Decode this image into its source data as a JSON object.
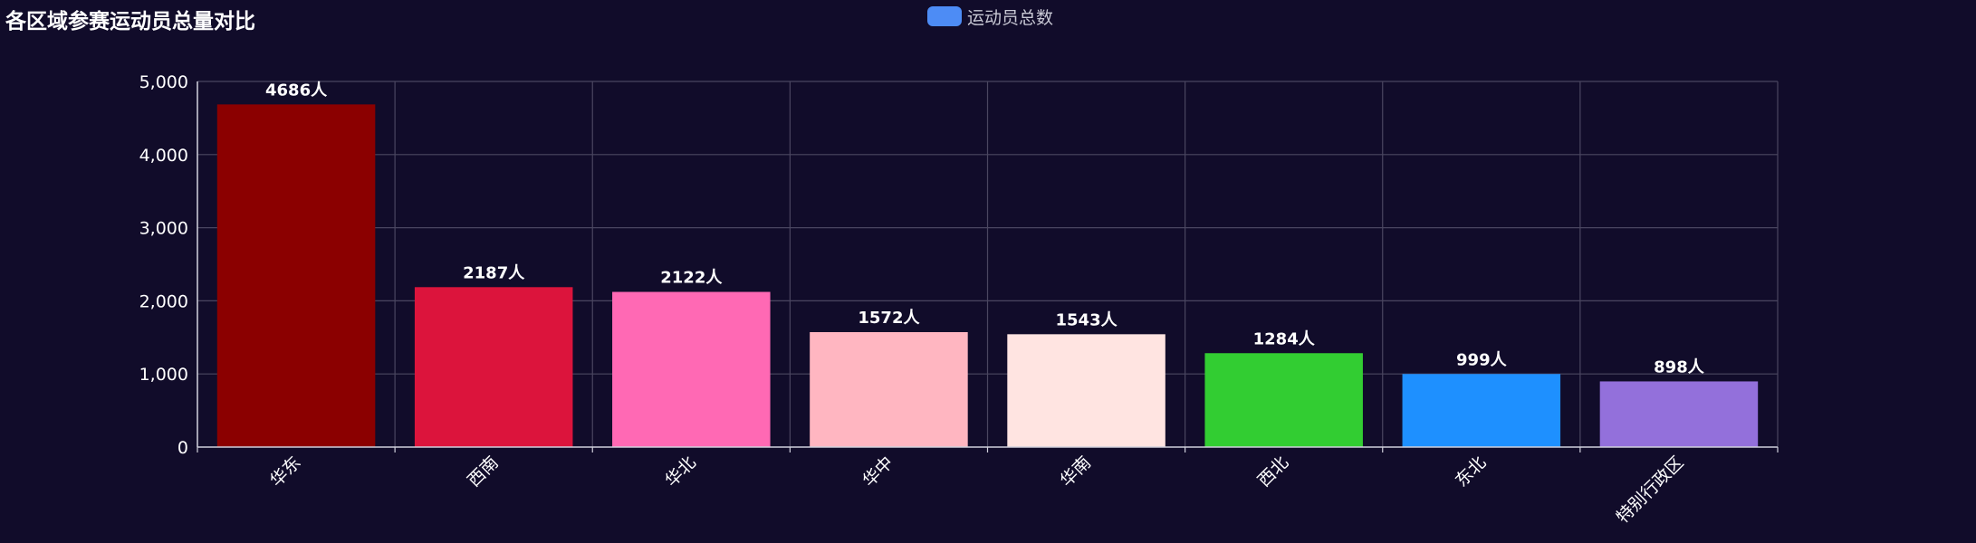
{
  "chart_data": {
    "type": "bar",
    "title": "各区域参赛运动员总量对比",
    "xlabel": "",
    "ylabel": "",
    "legend": {
      "entries": [
        "运动员总数"
      ],
      "placement": "top-center",
      "color": "#4d8cf5"
    },
    "categories": [
      "华东",
      "西南",
      "华北",
      "华中",
      "华南",
      "西北",
      "东北",
      "特别行政区"
    ],
    "series": [
      {
        "name": "运动员总数",
        "values": [
          4686,
          2187,
          2122,
          1572,
          1543,
          1284,
          999,
          898
        ],
        "data_labels": [
          "4686人",
          "2187人",
          "2122人",
          "1572人",
          "1543人",
          "1284人",
          "999人",
          "898人"
        ]
      }
    ],
    "bar_colors": [
      "#8b0000",
      "#dc143c",
      "#ff69b4",
      "#ffb6c1",
      "#ffe4e1",
      "#32cd32",
      "#1e90ff",
      "#9370db"
    ],
    "y_ticks": [
      "0",
      "1,000",
      "2,000",
      "3,000",
      "4,000",
      "5,000"
    ],
    "ylim": [
      0,
      5000
    ],
    "grid": true,
    "x_tick_rotation": "45deg",
    "background": "#110c2a"
  }
}
